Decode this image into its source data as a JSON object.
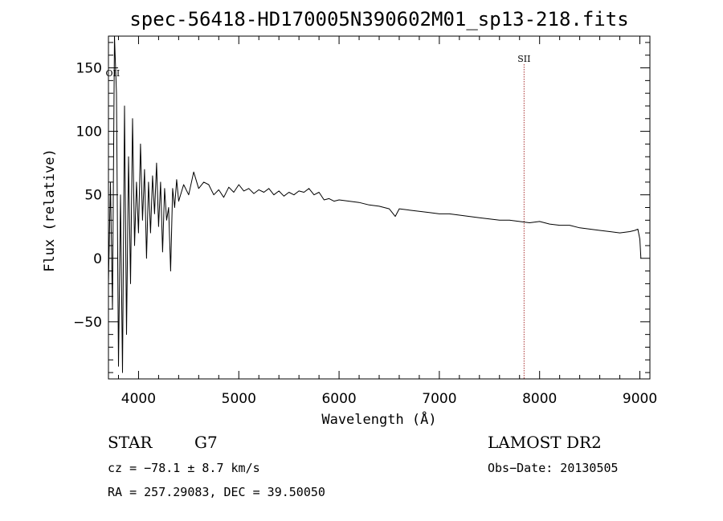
{
  "chart_data": {
    "type": "line",
    "title": "spec-56418-HD170005N390602M01_sp13-218.fits",
    "xlabel": "Wavelength (Å)",
    "ylabel": "Flux (relative)",
    "xlim": [
      3700,
      9100
    ],
    "ylim": [
      -95,
      175
    ],
    "x_ticks": [
      4000,
      5000,
      6000,
      7000,
      8000,
      9000
    ],
    "y_ticks": [
      -50,
      0,
      50,
      100,
      150
    ],
    "x_tick_labels": [
      "4000",
      "5000",
      "6000",
      "7000",
      "8000",
      "9000"
    ],
    "y_tick_labels": [
      "−50",
      "0",
      "50",
      "100",
      "150"
    ],
    "grid": false,
    "series": [
      {
        "color": "#000000",
        "x": [
          3700,
          3720,
          3740,
          3760,
          3780,
          3800,
          3820,
          3840,
          3860,
          3880,
          3900,
          3920,
          3940,
          3960,
          3980,
          4000,
          4020,
          4040,
          4060,
          4080,
          4100,
          4120,
          4140,
          4160,
          4180,
          4200,
          4220,
          4240,
          4260,
          4280,
          4300,
          4320,
          4340,
          4360,
          4380,
          4400,
          4450,
          4500,
          4550,
          4600,
          4650,
          4700,
          4750,
          4800,
          4850,
          4900,
          4950,
          5000,
          5050,
          5100,
          5150,
          5200,
          5250,
          5300,
          5350,
          5400,
          5450,
          5500,
          5550,
          5600,
          5650,
          5700,
          5750,
          5800,
          5850,
          5900,
          5950,
          6000,
          6100,
          6200,
          6300,
          6400,
          6500,
          6560,
          6600,
          6700,
          6800,
          6900,
          7000,
          7100,
          7200,
          7300,
          7400,
          7500,
          7600,
          7700,
          7800,
          7900,
          8000,
          8100,
          8200,
          8300,
          8400,
          8500,
          8600,
          8700,
          8800,
          8900,
          8950,
          8980,
          9000,
          9010
        ],
        "y": [
          -20,
          60,
          -40,
          175,
          130,
          -85,
          50,
          -90,
          120,
          -60,
          80,
          -20,
          110,
          10,
          60,
          20,
          90,
          30,
          70,
          0,
          60,
          20,
          65,
          35,
          75,
          25,
          60,
          5,
          55,
          30,
          40,
          -10,
          55,
          40,
          62,
          45,
          58,
          50,
          68,
          55,
          60,
          58,
          50,
          54,
          48,
          56,
          52,
          58,
          53,
          55,
          51,
          54,
          52,
          55,
          50,
          53,
          49,
          52,
          50,
          53,
          52,
          55,
          50,
          52,
          46,
          47,
          45,
          46,
          45,
          44,
          42,
          41,
          39,
          33,
          39,
          38,
          37,
          36,
          35,
          35,
          34,
          33,
          32,
          31,
          30,
          30,
          29,
          28,
          29,
          27,
          26,
          26,
          24,
          23,
          22,
          21,
          20,
          21,
          22,
          23,
          15,
          0
        ]
      }
    ],
    "annotations": [
      {
        "label": "OII",
        "x": 3727
      },
      {
        "label": "SII",
        "x": 7845,
        "line_color": "#aa3333",
        "line_style": "dotted"
      }
    ]
  },
  "info": {
    "object_class": "STAR",
    "subclass": "G7",
    "survey": "LAMOST DR2",
    "cz": "cz = −78.1 ± 8.7 km/s",
    "obs_date": "Obs−Date: 20130505",
    "coords": "RA = 257.29083, DEC =  39.50050"
  }
}
